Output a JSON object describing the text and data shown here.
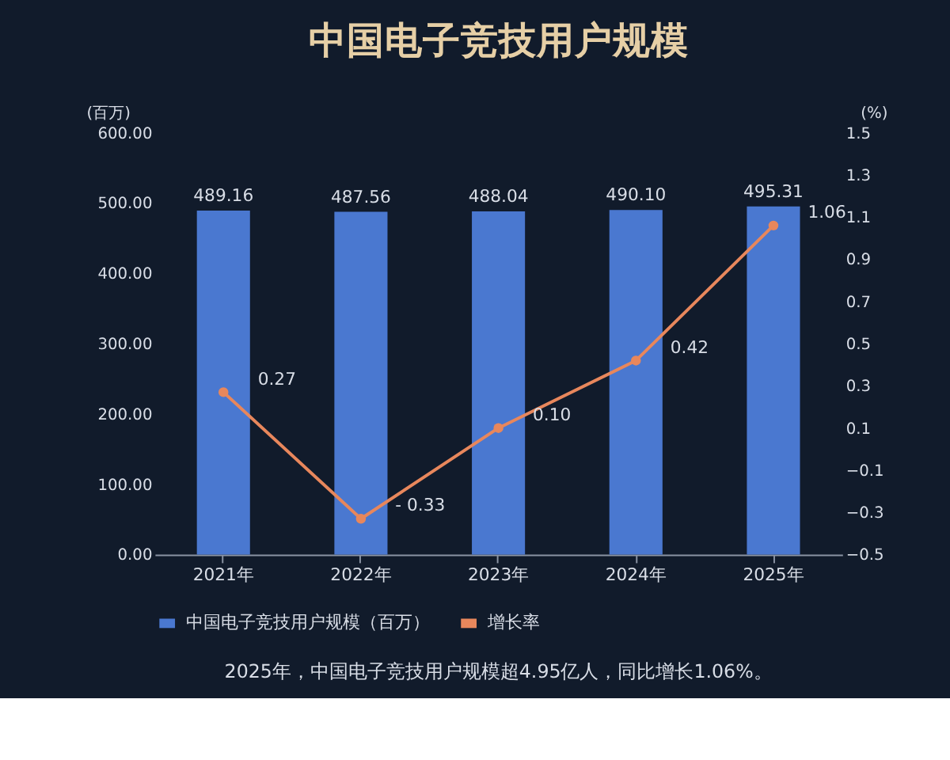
{
  "chart_data": {
    "type": "bar",
    "title": "中国电子竞技用户规模",
    "categories": [
      "2021年",
      "2022年",
      "2023年",
      "2024年",
      "2025年"
    ],
    "series": [
      {
        "name": "中国电子竞技用户规模（百万）",
        "color": "#4a78d0",
        "values": [
          489.16,
          487.56,
          488.04,
          490.1,
          495.31
        ],
        "value_labels": [
          "489.16",
          "487.56",
          "488.04",
          "490.10",
          "495.31"
        ]
      },
      {
        "name": "增长率",
        "type": "line",
        "axis": "y2",
        "color": "#e8875c",
        "marker": "circle",
        "line_style": "solid",
        "values": [
          0.27,
          -0.33,
          0.1,
          0.42,
          1.06
        ],
        "value_labels": [
          "0.27",
          "- 0.33",
          "0.10",
          "0.42",
          "1.06"
        ]
      }
    ],
    "ylabel": "(百万)",
    "y2label": "(%)",
    "ylim": [
      0,
      600
    ],
    "yticks": [
      {
        "value": 0,
        "label": "0.00"
      },
      {
        "value": 100,
        "label": "100.00"
      },
      {
        "value": 200,
        "label": "200.00"
      },
      {
        "value": 300,
        "label": "300.00"
      },
      {
        "value": 400,
        "label": "400.00"
      },
      {
        "value": 500,
        "label": "500.00"
      },
      {
        "value": 600,
        "label": "600.00"
      }
    ],
    "y2lim": [
      -0.5,
      1.5
    ],
    "y2ticks": [
      -0.5,
      -0.3,
      -0.1,
      0.1,
      0.3,
      0.5,
      0.7,
      0.9,
      1.1,
      1.3,
      1.5
    ],
    "grid": false,
    "legend": "bottom",
    "annotations": [
      "2025年，中国电子竞技用户规模超4.95亿人，同比增长1.06%。"
    ]
  }
}
